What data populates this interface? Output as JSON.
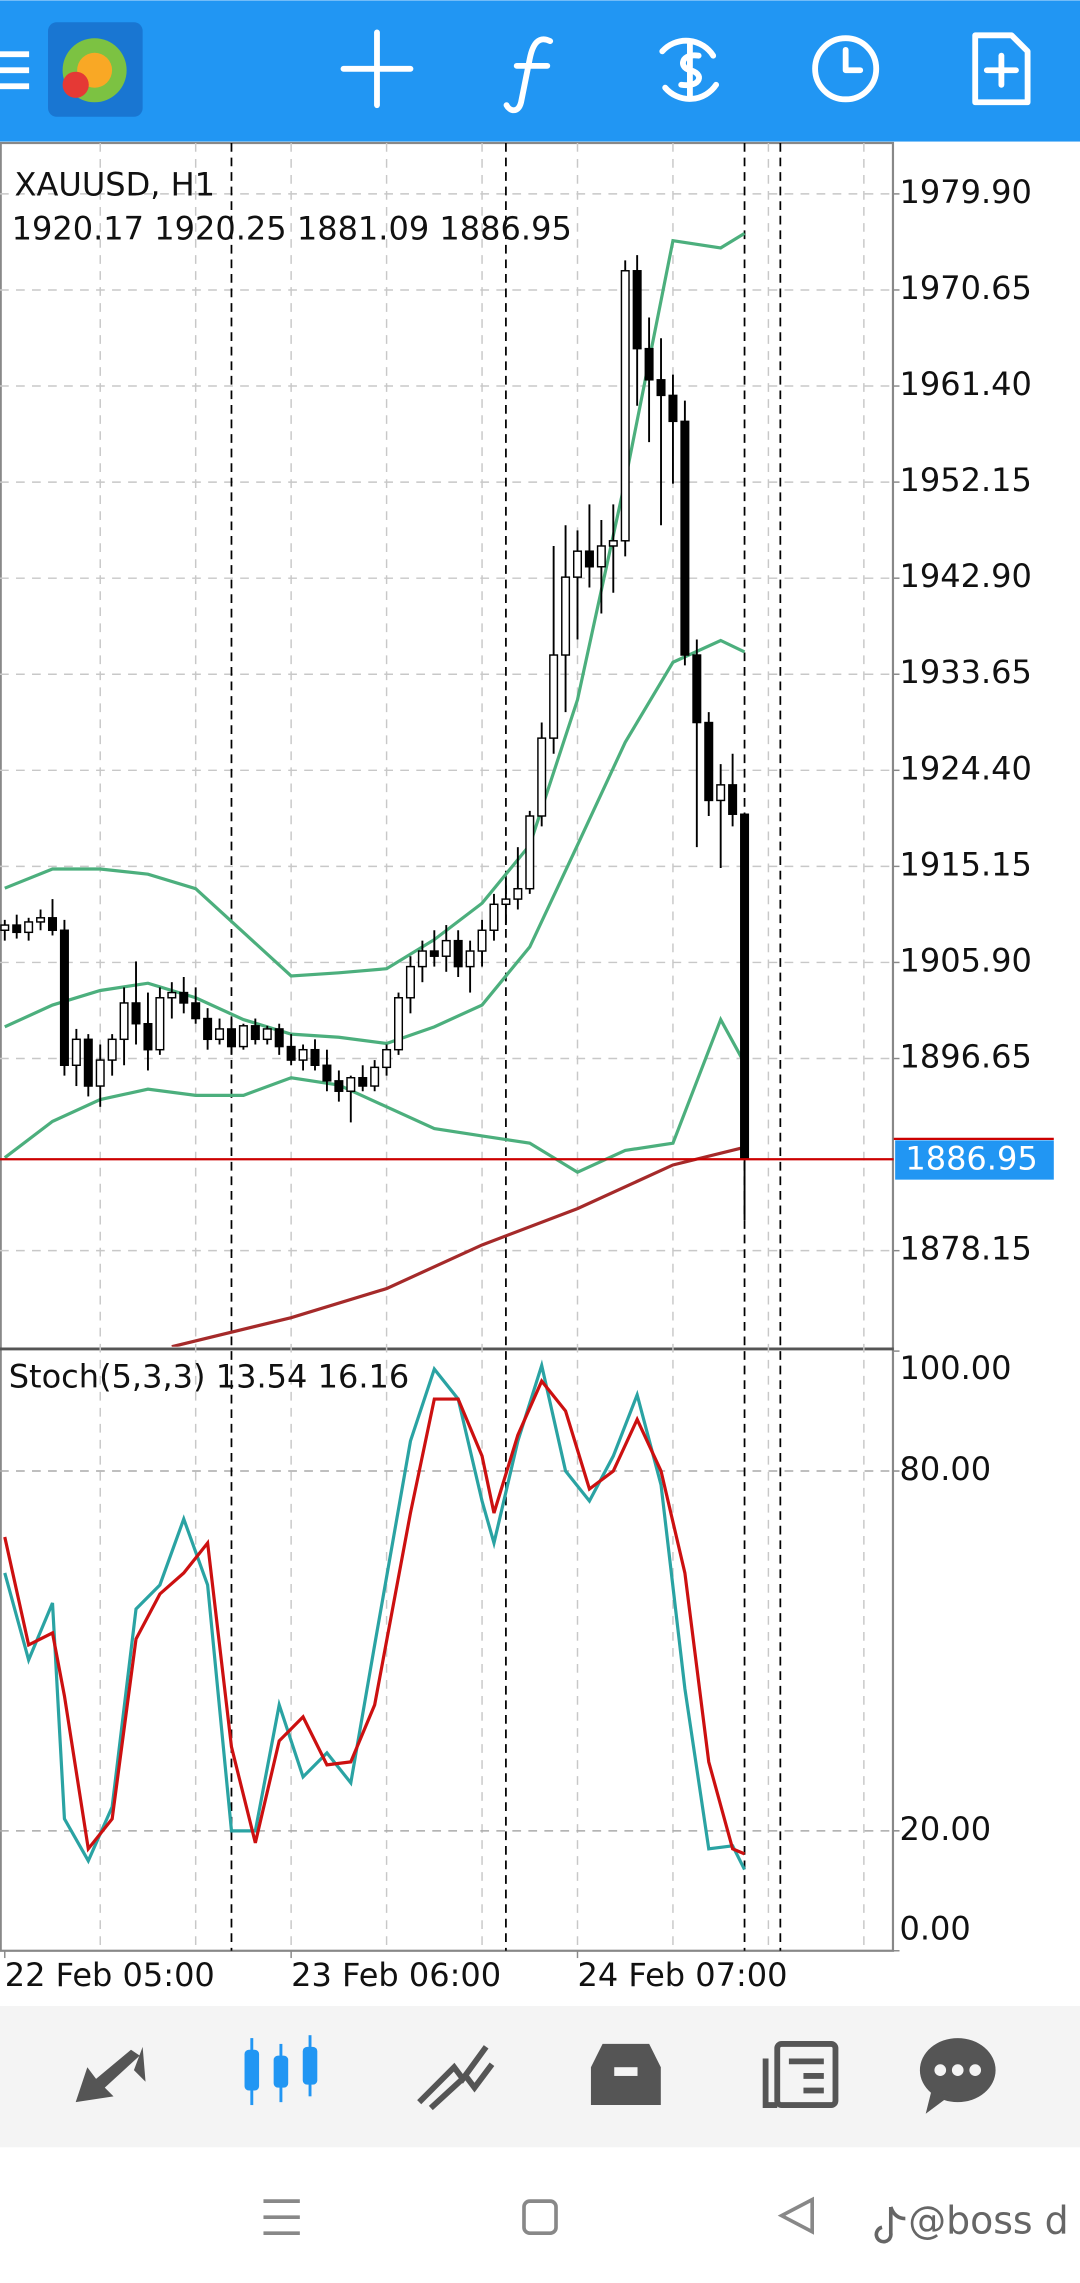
{
  "chart_data": [
    {
      "type": "candlestick",
      "title": "XAUUSD, H1",
      "x": [
        0,
        1,
        2,
        3,
        4,
        5,
        6,
        7,
        8,
        9,
        10,
        11,
        12,
        13,
        14,
        15,
        16,
        17,
        18,
        19,
        20,
        21,
        22,
        23,
        24,
        25,
        26,
        27,
        28,
        29,
        30,
        31,
        32,
        33,
        34,
        35,
        36,
        37,
        38,
        39,
        40,
        41,
        42,
        43,
        44,
        45,
        46,
        47,
        48,
        49,
        50,
        51,
        52,
        53,
        54,
        55,
        56,
        57,
        58,
        59,
        60,
        61,
        62
      ],
      "open": [
        1909.0,
        1909.5,
        1908.8,
        1909.8,
        1910.2,
        1909.0,
        1896.0,
        1898.5,
        1894.0,
        1896.5,
        1898.5,
        1902.0,
        1900.0,
        1897.5,
        1902.5,
        1903.0,
        1902.0,
        1900.5,
        1898.5,
        1899.5,
        1897.8,
        1899.8,
        1898.5,
        1899.5,
        1897.8,
        1896.5,
        1897.5,
        1896.0,
        1894.5,
        1893.5,
        1894.8,
        1894.0,
        1895.8,
        1897.5,
        1902.5,
        1905.5,
        1907.0,
        1906.5,
        1908.0,
        1905.5,
        1907.0,
        1909.0,
        1911.5,
        1912.0,
        1913.0,
        1920.0,
        1927.5,
        1935.5,
        1943.0,
        1945.5,
        1944.0,
        1946.0,
        1946.5,
        1972.5,
        1965.0,
        1962.0,
        1960.5,
        1958.0,
        1935.5,
        1929.0,
        1921.5,
        1923.0,
        1920.17
      ],
      "high": [
        1910.0,
        1910.5,
        1910.2,
        1911.0,
        1912.0,
        1910.0,
        1899.5,
        1899.0,
        1898.0,
        1899.0,
        1903.5,
        1906.0,
        1903.0,
        1903.5,
        1904.0,
        1904.5,
        1903.5,
        1901.5,
        1900.5,
        1900.5,
        1900.0,
        1900.5,
        1899.8,
        1900.0,
        1899.0,
        1898.0,
        1898.5,
        1897.5,
        1895.5,
        1895.0,
        1896.0,
        1896.5,
        1898.0,
        1903.0,
        1906.5,
        1908.0,
        1909.0,
        1909.5,
        1909.0,
        1908.0,
        1910.0,
        1912.5,
        1914.0,
        1917.0,
        1920.5,
        1929.0,
        1946.0,
        1948.0,
        1947.5,
        1950.0,
        1948.5,
        1950.0,
        1973.5,
        1974.0,
        1968.0,
        1966.0,
        1962.5,
        1960.0,
        1937.0,
        1930.0,
        1925.0,
        1926.0,
        1920.25
      ],
      "low": [
        1908.0,
        1908.2,
        1908.0,
        1909.0,
        1908.5,
        1895.0,
        1894.0,
        1893.0,
        1892.0,
        1895.0,
        1896.0,
        1898.0,
        1895.5,
        1897.0,
        1900.5,
        1901.0,
        1900.0,
        1897.5,
        1898.0,
        1897.0,
        1897.5,
        1898.0,
        1898.0,
        1897.0,
        1896.0,
        1895.5,
        1895.5,
        1893.5,
        1892.5,
        1890.5,
        1893.5,
        1893.5,
        1895.0,
        1897.0,
        1901.0,
        1904.0,
        1905.5,
        1905.0,
        1904.5,
        1903.0,
        1905.5,
        1908.0,
        1909.5,
        1911.0,
        1912.5,
        1919.0,
        1926.0,
        1930.0,
        1937.0,
        1942.0,
        1939.5,
        1941.5,
        1945.0,
        1959.5,
        1956.0,
        1948.0,
        1952.0,
        1934.5,
        1917.0,
        1920.0,
        1915.0,
        1919.0,
        1881.09
      ],
      "close": [
        1909.5,
        1908.8,
        1909.8,
        1910.2,
        1909.0,
        1896.0,
        1898.5,
        1894.0,
        1896.5,
        1898.5,
        1902.0,
        1900.0,
        1897.5,
        1902.5,
        1903.0,
        1902.0,
        1900.5,
        1898.5,
        1899.5,
        1897.8,
        1899.8,
        1898.5,
        1899.5,
        1897.8,
        1896.5,
        1897.5,
        1896.0,
        1894.5,
        1893.5,
        1894.8,
        1894.0,
        1895.8,
        1897.5,
        1902.5,
        1905.5,
        1907.0,
        1906.5,
        1908.0,
        1905.5,
        1907.0,
        1909.0,
        1911.5,
        1912.0,
        1913.0,
        1920.0,
        1927.5,
        1935.5,
        1943.0,
        1945.5,
        1944.0,
        1946.0,
        1946.5,
        1972.5,
        1965.0,
        1962.0,
        1960.5,
        1958.0,
        1935.5,
        1929.0,
        1921.5,
        1923.0,
        1920.17,
        1886.95
      ],
      "bull_color": "#ffffff",
      "bear_color": "#000000",
      "candle_stroke": "#000000",
      "series": [
        {
          "color": "#4caf7d",
          "x": [
            0,
            4,
            8,
            12,
            16,
            20,
            24,
            28,
            32,
            36,
            40,
            44,
            48,
            52,
            56,
            60,
            62
          ],
          "values": [
            1913.05,
            1914.9,
            1914.9,
            1914.4,
            1913.0,
            1908.8,
            1904.6,
            1904.9,
            1905.3,
            1908.1,
            1911.6,
            1917.2,
            1931.2,
            1952.3,
            1975.4,
            1974.7,
            1976.1
          ]
        },
        {
          "color": "#4caf7d",
          "x": [
            0,
            4,
            8,
            12,
            16,
            20,
            24,
            28,
            32,
            36,
            40,
            44,
            48,
            52,
            56,
            60,
            62
          ],
          "values": [
            1899.7,
            1901.8,
            1903.2,
            1903.9,
            1902.5,
            1900.4,
            1899.0,
            1898.7,
            1898.1,
            1899.7,
            1901.8,
            1907.4,
            1917.2,
            1927.1,
            1934.8,
            1936.9,
            1935.8
          ]
        },
        {
          "color": "#4caf7d",
          "x": [
            0,
            4,
            8,
            12,
            16,
            20,
            24,
            28,
            32,
            36,
            40,
            44,
            48,
            52,
            56,
            60,
            62
          ],
          "values": [
            1887.1,
            1890.6,
            1892.7,
            1893.7,
            1893.1,
            1893.1,
            1894.8,
            1894.1,
            1892.0,
            1889.9,
            1889.2,
            1888.5,
            1885.7,
            1887.8,
            1888.5,
            1900.4,
            1896.2
          ]
        },
        {
          "color": "#a52a2a",
          "x": [
            14,
            24,
            32,
            40,
            48,
            56,
            62
          ],
          "values": [
            1868.9,
            1871.7,
            1874.5,
            1878.7,
            1882.2,
            1886.4,
            1888.1
          ]
        }
      ],
      "price_line_color": "#cc0000",
      "price_label_color": "#2196f3",
      "xlim": [
        -0.4,
        74.5
      ],
      "xticks": [
        {
          "value": 0,
          "label": "22 Feb 05:00"
        },
        {
          "value": 24,
          "label": "23 Feb 06:00"
        },
        {
          "value": 48,
          "label": "24 Feb 07:00"
        }
      ],
      "xgrid": [
        8,
        16,
        24,
        32,
        40,
        48,
        56,
        64,
        72
      ],
      "separators": [
        19,
        42,
        62,
        65
      ],
      "ylim": [
        1868.9,
        1984.8
      ],
      "yticks": [
        {
          "value": 1979.9,
          "label": "1979.90"
        },
        {
          "value": 1970.65,
          "label": "1970.65"
        },
        {
          "value": 1961.4,
          "label": "1961.40"
        },
        {
          "value": 1952.15,
          "label": "1952.15"
        },
        {
          "value": 1942.9,
          "label": "1942.90"
        },
        {
          "value": 1933.65,
          "label": "1933.65"
        },
        {
          "value": 1924.4,
          "label": "1924.40"
        },
        {
          "value": 1915.15,
          "label": "1915.15"
        },
        {
          "value": 1905.9,
          "label": "1905.90"
        },
        {
          "value": 1896.65,
          "label": "1896.65"
        },
        {
          "value": 1878.15,
          "label": "1878.15"
        }
      ],
      "grid": true
    },
    {
      "type": "line",
      "title": "Stoch(5,3,3)",
      "x": [
        0,
        2,
        4,
        5,
        7,
        9,
        11,
        13,
        15,
        17,
        19,
        21,
        23,
        25,
        27,
        29,
        31,
        34,
        36,
        38,
        40,
        41,
        43,
        45,
        47,
        49,
        51,
        53,
        55,
        57,
        59,
        61,
        62
      ],
      "series": [
        {
          "color": "#2aa3a3",
          "values": [
            63,
            48.5,
            58,
            22,
            15,
            24,
            57,
            61,
            72,
            61,
            20,
            20,
            41,
            29,
            33,
            28,
            51,
            85,
            97,
            92,
            75,
            68,
            85,
            97.6,
            80,
            75,
            82.5,
            92.7,
            77.7,
            43.7,
            17,
            17.5,
            13.54
          ]
        },
        {
          "color": "#cc1010",
          "values": [
            69,
            51,
            53,
            42.5,
            17,
            22,
            52,
            59.5,
            63,
            68,
            34,
            18,
            35,
            39,
            31,
            31.5,
            41,
            73,
            92,
            92,
            82.5,
            73,
            86,
            95,
            90,
            77,
            80,
            88.6,
            80,
            63,
            31.5,
            17,
            16.16
          ]
        }
      ],
      "ylim": [
        0,
        100
      ],
      "yticks": [
        {
          "value": 100,
          "label": "100.00"
        },
        {
          "value": 80,
          "label": "80.00"
        },
        {
          "value": 20,
          "label": "20.00"
        },
        {
          "value": 0,
          "label": "0.00"
        }
      ],
      "grid": true
    }
  ],
  "watermark": "@boss d"
}
